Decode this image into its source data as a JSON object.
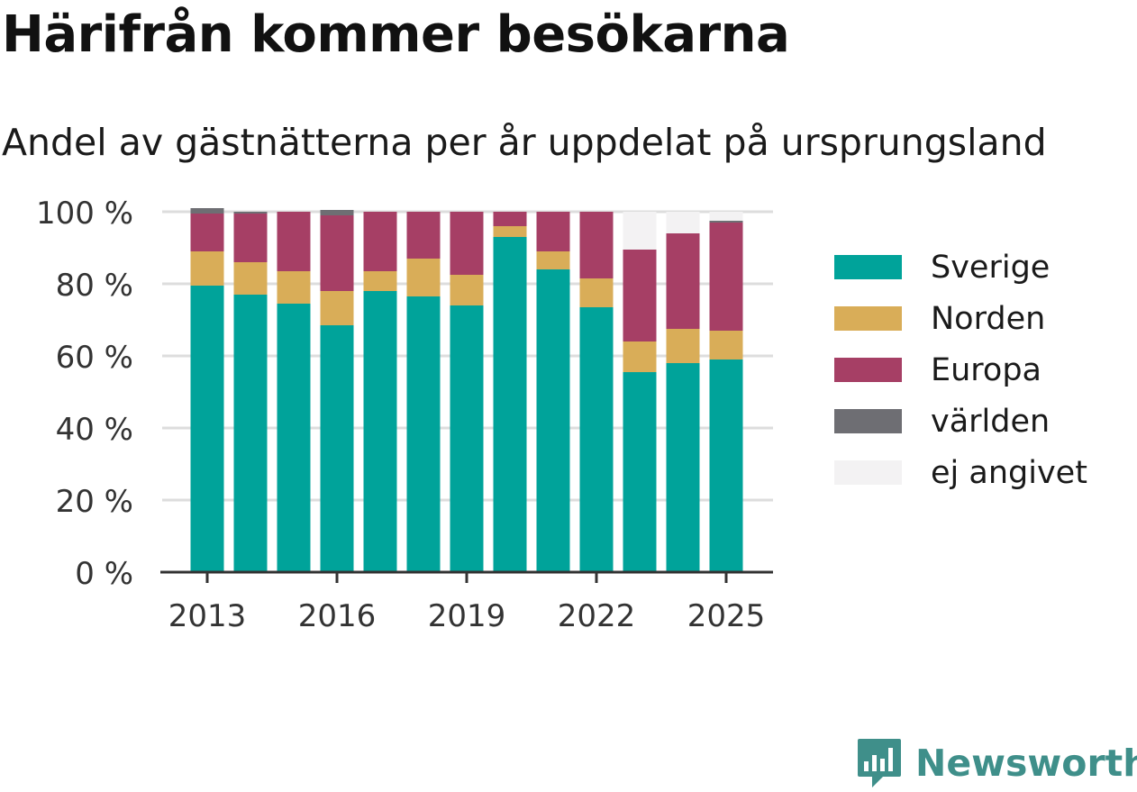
{
  "title": "Härifrån kommer besökarna",
  "subtitle": "Andel av gästnätterna per år uppdelat på ursprungsland",
  "brand": {
    "name": "Newsworthy",
    "icon": "newsworthy-logo-icon",
    "color": "#3f8f8a"
  },
  "chart_data": {
    "type": "bar",
    "stacked": true,
    "categories": [
      "2013",
      "2014",
      "2015",
      "2016",
      "2017",
      "2018",
      "2019",
      "2020",
      "2021",
      "2022",
      "2023",
      "2024",
      "2025"
    ],
    "x_tick_labels": [
      "2013",
      "2016",
      "2019",
      "2022",
      "2025"
    ],
    "y_tick_labels": [
      "0 %",
      "20 %",
      "40 %",
      "60 %",
      "80 %",
      "100 %"
    ],
    "ylim": [
      0,
      100
    ],
    "grid": true,
    "legend_position": "right",
    "series": [
      {
        "name": "Sverige",
        "color": "#00a39a",
        "values": [
          79.5,
          77,
          74.5,
          68.5,
          78,
          76.5,
          74,
          93,
          84,
          73.5,
          55.5,
          58,
          59
        ]
      },
      {
        "name": "Norden",
        "color": "#d9ad58",
        "values": [
          9.5,
          9,
          9,
          9.5,
          5.5,
          10.5,
          8.5,
          3,
          5,
          8,
          8.5,
          9.5,
          8
        ]
      },
      {
        "name": "Europa",
        "color": "#a63f65",
        "values": [
          10.5,
          13.5,
          16.5,
          21,
          16.5,
          13,
          17.5,
          4,
          11,
          18.5,
          25.5,
          26.5,
          30
        ]
      },
      {
        "name": "världen",
        "color": "#6e6e73",
        "values": [
          1.5,
          0.5,
          0,
          1.5,
          0,
          0,
          0,
          0,
          0,
          0,
          0,
          0,
          0.5
        ]
      },
      {
        "name": "ej angivet",
        "color": "#f3f2f3",
        "values": [
          0,
          0,
          0,
          0,
          0,
          0,
          0,
          0,
          0,
          0,
          10.5,
          6,
          2.5
        ]
      }
    ]
  }
}
